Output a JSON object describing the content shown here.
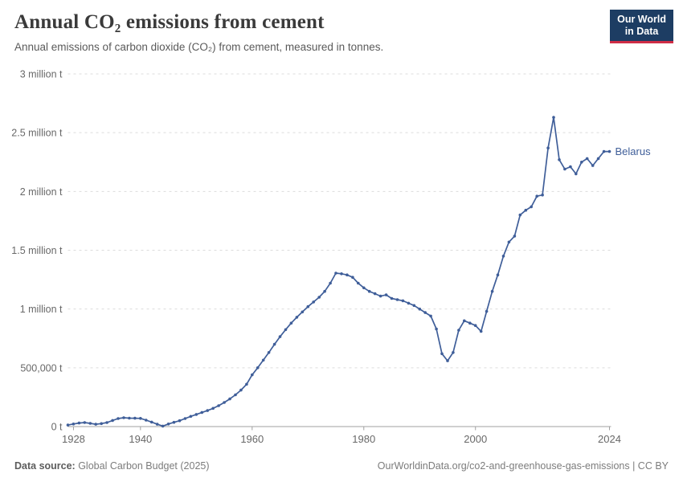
{
  "header": {
    "title": "Annual CO₂ emissions from cement",
    "subtitle": "Annual emissions of carbon dioxide (CO₂) from cement, measured in tonnes."
  },
  "logo": {
    "line1": "Our World",
    "line2": "in Data",
    "bg": "#1d3d63",
    "accent": "#cf2d46"
  },
  "footer": {
    "source_label": "Data source:",
    "source_value": " Global Carbon Budget (2025)",
    "link": "OurWorldinData.org/co2-and-greenhouse-gas-emissions | CC BY"
  },
  "chart_data": {
    "type": "line",
    "title": "Annual CO₂ emissions from cement",
    "xlabel": "",
    "ylabel": "tonnes",
    "xlim": [
      1927,
      2024
    ],
    "ylim": [
      0,
      3000000
    ],
    "grid": "horizontal-dashed",
    "legend_position": "end-of-line",
    "x_ticks": [
      1928,
      1940,
      1960,
      1980,
      2000,
      2024
    ],
    "y_ticks": [
      0,
      500000,
      1000000,
      1500000,
      2000000,
      2500000,
      3000000
    ],
    "y_tick_labels": [
      "0 t",
      "500,000 t",
      "1 million t",
      "1.5 million t",
      "2 million t",
      "2.5 million t",
      "3 million t"
    ],
    "axis_color": "#a1a1a1",
    "grid_color": "#dcdcdc",
    "tick_label_color": "#686868",
    "series": [
      {
        "name": "Belarus",
        "color": "#3f5e99",
        "x": [
          1927,
          1928,
          1929,
          1930,
          1931,
          1932,
          1933,
          1934,
          1935,
          1936,
          1937,
          1938,
          1939,
          1940,
          1941,
          1942,
          1943,
          1944,
          1945,
          1946,
          1947,
          1948,
          1949,
          1950,
          1951,
          1952,
          1953,
          1954,
          1955,
          1956,
          1957,
          1958,
          1959,
          1960,
          1961,
          1962,
          1963,
          1964,
          1965,
          1966,
          1967,
          1968,
          1969,
          1970,
          1971,
          1972,
          1973,
          1974,
          1975,
          1976,
          1977,
          1978,
          1979,
          1980,
          1981,
          1982,
          1983,
          1984,
          1985,
          1986,
          1987,
          1988,
          1989,
          1990,
          1991,
          1992,
          1993,
          1994,
          1995,
          1996,
          1997,
          1998,
          1999,
          2000,
          2001,
          2002,
          2003,
          2004,
          2005,
          2006,
          2007,
          2008,
          2009,
          2010,
          2011,
          2012,
          2013,
          2014,
          2015,
          2016,
          2017,
          2018,
          2019,
          2020,
          2021,
          2022,
          2023,
          2024
        ],
        "y": [
          13000,
          22000,
          30000,
          34000,
          27000,
          20000,
          25000,
          34000,
          52000,
          68000,
          75000,
          72000,
          71000,
          70000,
          55000,
          38000,
          20000,
          4000,
          22000,
          36000,
          50000,
          68000,
          87000,
          103000,
          120000,
          136000,
          155000,
          178000,
          205000,
          235000,
          270000,
          310000,
          360000,
          440000,
          500000,
          565000,
          630000,
          700000,
          765000,
          825000,
          880000,
          930000,
          975000,
          1020000,
          1060000,
          1100000,
          1150000,
          1220000,
          1305000,
          1300000,
          1290000,
          1270000,
          1220000,
          1180000,
          1150000,
          1130000,
          1110000,
          1120000,
          1090000,
          1080000,
          1070000,
          1050000,
          1030000,
          1000000,
          970000,
          940000,
          830000,
          620000,
          560000,
          630000,
          820000,
          900000,
          880000,
          860000,
          810000,
          980000,
          1150000,
          1290000,
          1450000,
          1570000,
          1620000,
          1800000,
          1840000,
          1870000,
          1960000,
          1970000,
          2370000,
          2630000,
          2270000,
          2190000,
          2210000,
          2150000,
          2250000,
          2280000,
          2220000,
          2280000,
          2340000,
          2340000
        ]
      }
    ]
  }
}
